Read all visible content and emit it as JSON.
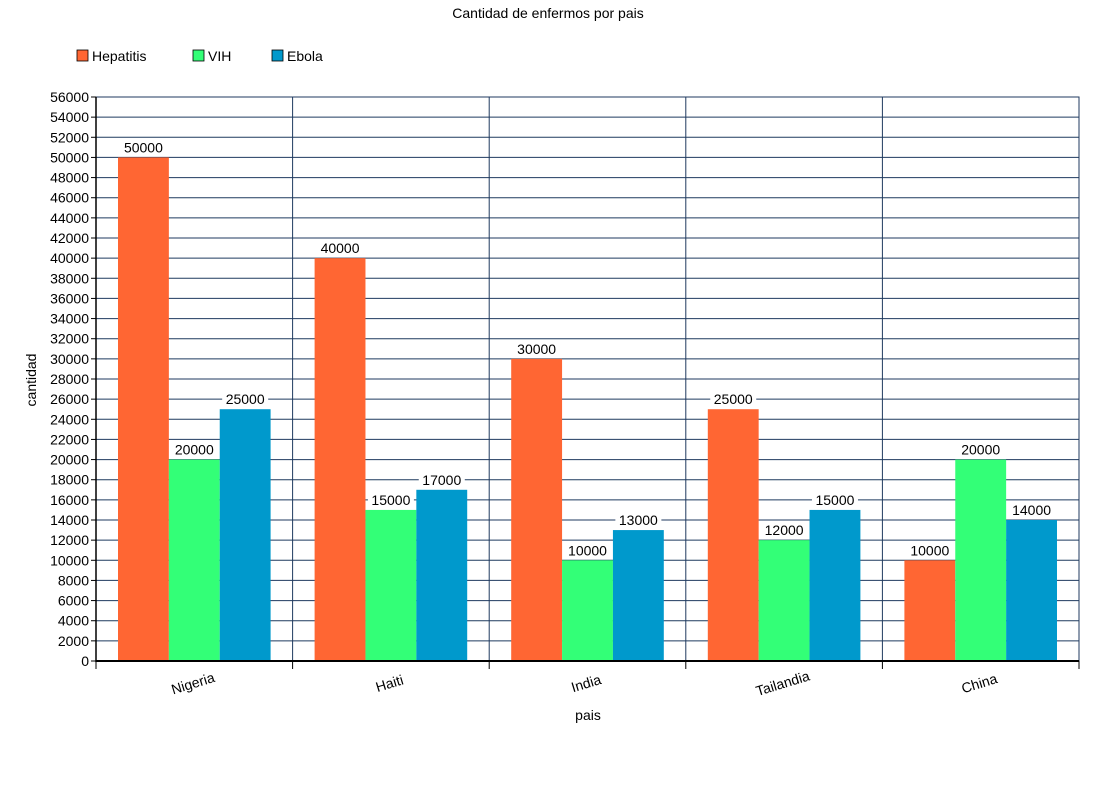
{
  "chart_data": {
    "type": "bar",
    "title": "Cantidad de enfermos por pais",
    "xlabel": "pais",
    "ylabel": "cantidad",
    "categories": [
      "Nigeria",
      "Haiti",
      "India",
      "Tailandia",
      "China"
    ],
    "series": [
      {
        "name": "Hepatitis",
        "color": "#ff6633",
        "values": [
          50000,
          40000,
          30000,
          25000,
          10000
        ]
      },
      {
        "name": "VIH",
        "color": "#33ff77",
        "values": [
          20000,
          15000,
          10000,
          12000,
          20000
        ]
      },
      {
        "name": "Ebola",
        "color": "#0099cc",
        "values": [
          25000,
          17000,
          13000,
          15000,
          14000
        ]
      }
    ],
    "ylim": [
      0,
      56000
    ],
    "ytick_step": 2000,
    "grid": true,
    "legend_position": "top-left",
    "grid_color": "#1f3a5f"
  }
}
